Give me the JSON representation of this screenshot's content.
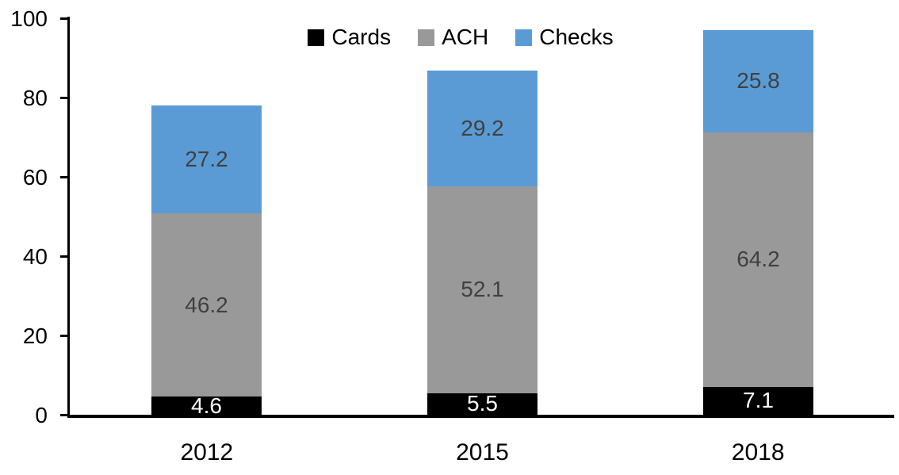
{
  "chart_data": {
    "type": "bar",
    "stacked": true,
    "title": "",
    "xlabel": "",
    "ylabel": "",
    "categories": [
      "2012",
      "2015",
      "2018"
    ],
    "series": [
      {
        "name": "Cards",
        "color": "#000000",
        "label_color": "#ffffff",
        "values": [
          4.6,
          5.5,
          7.1
        ]
      },
      {
        "name": "ACH",
        "color": "#999999",
        "label_color": "#404040",
        "values": [
          46.2,
          52.1,
          64.2
        ]
      },
      {
        "name": "Checks",
        "color": "#5B9BD5",
        "label_color": "#404040",
        "values": [
          27.2,
          29.2,
          25.8
        ]
      }
    ],
    "yticks": [
      0,
      20,
      40,
      60,
      80,
      100
    ],
    "ylim": [
      0,
      100
    ],
    "legend_position": "top",
    "legend_labels": [
      "Cards",
      "ACH",
      "Checks"
    ],
    "grid": false,
    "axis_color": "#000000"
  }
}
